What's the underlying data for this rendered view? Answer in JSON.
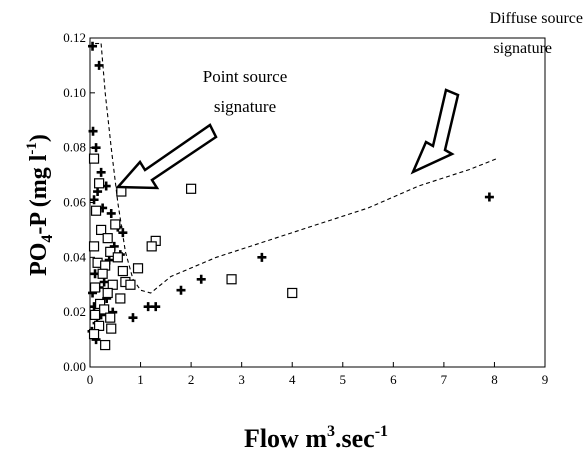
{
  "chart_data": {
    "type": "scatter",
    "xlabel": "Flow m",
    "xlabel_sup": "3",
    "xlabel_mid": ".sec",
    "xlabel_sup2": "-1",
    "ylabel": "PO",
    "ylabel_sub": "4",
    "ylabel_mid": "-P (mg l",
    "ylabel_sup": "-1",
    "ylabel_end": ")",
    "xlim": [
      0,
      9
    ],
    "ylim": [
      0,
      0.12
    ],
    "x_ticks": [
      "0",
      "1",
      "2",
      "3",
      "4",
      "5",
      "6",
      "7",
      "8",
      "9"
    ],
    "y_ticks": [
      "0.00",
      "0.02",
      "0.04",
      "0.06",
      "0.08",
      "0.10",
      "0.12"
    ],
    "series": [
      {
        "marker": "plus",
        "points": [
          [
            0.05,
            0.117
          ],
          [
            0.18,
            0.11
          ],
          [
            0.06,
            0.086
          ],
          [
            0.12,
            0.08
          ],
          [
            0.22,
            0.071
          ],
          [
            0.32,
            0.066
          ],
          [
            0.15,
            0.064
          ],
          [
            0.08,
            0.061
          ],
          [
            0.25,
            0.058
          ],
          [
            0.42,
            0.056
          ],
          [
            0.55,
            0.051
          ],
          [
            0.65,
            0.049
          ],
          [
            0.48,
            0.044
          ],
          [
            0.6,
            0.041
          ],
          [
            0.38,
            0.039
          ],
          [
            0.1,
            0.034
          ],
          [
            0.28,
            0.031
          ],
          [
            0.18,
            0.029
          ],
          [
            0.05,
            0.027
          ],
          [
            0.33,
            0.025
          ],
          [
            0.08,
            0.022
          ],
          [
            0.22,
            0.019
          ],
          [
            0.14,
            0.016
          ],
          [
            0.04,
            0.013
          ],
          [
            0.12,
            0.01
          ],
          [
            0.45,
            0.02
          ],
          [
            0.85,
            0.018
          ],
          [
            1.15,
            0.022
          ],
          [
            1.3,
            0.022
          ],
          [
            1.8,
            0.028
          ],
          [
            2.2,
            0.032
          ],
          [
            3.4,
            0.04
          ],
          [
            7.9,
            0.062
          ]
        ]
      },
      {
        "marker": "square",
        "points": [
          [
            0.08,
            0.076
          ],
          [
            0.18,
            0.067
          ],
          [
            0.62,
            0.064
          ],
          [
            0.12,
            0.057
          ],
          [
            0.5,
            0.052
          ],
          [
            0.22,
            0.05
          ],
          [
            0.35,
            0.047
          ],
          [
            1.3,
            0.046
          ],
          [
            1.22,
            0.044
          ],
          [
            0.08,
            0.044
          ],
          [
            0.4,
            0.042
          ],
          [
            0.55,
            0.04
          ],
          [
            0.15,
            0.038
          ],
          [
            0.3,
            0.037
          ],
          [
            0.95,
            0.036
          ],
          [
            0.65,
            0.035
          ],
          [
            0.25,
            0.034
          ],
          [
            0.7,
            0.031
          ],
          [
            0.45,
            0.03
          ],
          [
            0.8,
            0.03
          ],
          [
            0.1,
            0.029
          ],
          [
            0.35,
            0.027
          ],
          [
            0.6,
            0.025
          ],
          [
            0.2,
            0.023
          ],
          [
            0.28,
            0.021
          ],
          [
            0.1,
            0.019
          ],
          [
            0.4,
            0.018
          ],
          [
            0.18,
            0.015
          ],
          [
            0.42,
            0.014
          ],
          [
            0.08,
            0.012
          ],
          [
            0.3,
            0.008
          ],
          [
            2.0,
            0.065
          ],
          [
            2.8,
            0.032
          ],
          [
            4.0,
            0.027
          ]
        ]
      }
    ],
    "fit_line": [
      [
        0.22,
        0.118
      ],
      [
        0.3,
        0.1
      ],
      [
        0.42,
        0.08
      ],
      [
        0.55,
        0.06
      ],
      [
        0.7,
        0.042
      ],
      [
        0.85,
        0.032
      ],
      [
        1.0,
        0.028
      ],
      [
        1.2,
        0.027
      ],
      [
        1.6,
        0.033
      ],
      [
        2.5,
        0.04
      ],
      [
        3.5,
        0.046
      ],
      [
        4.5,
        0.052
      ],
      [
        5.5,
        0.058
      ],
      [
        6.5,
        0.066
      ],
      [
        7.5,
        0.072
      ],
      [
        8.05,
        0.076
      ]
    ],
    "fit_line_left": [
      [
        0.1,
        0.118
      ],
      [
        0.22,
        0.118
      ]
    ],
    "annotations": [
      {
        "line1": "Point source",
        "line2": "signature"
      },
      {
        "line1": "Diffuse source",
        "line2": "signature"
      }
    ]
  }
}
